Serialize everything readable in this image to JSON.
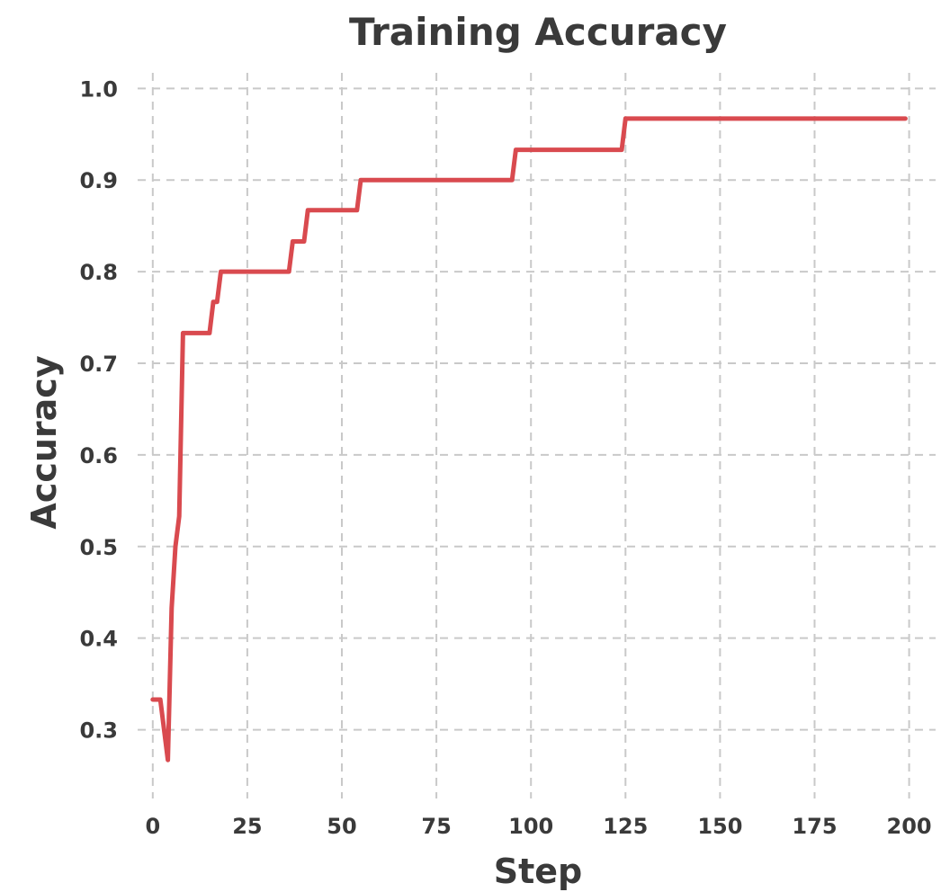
{
  "chart_data": {
    "type": "line",
    "title": "Training Accuracy",
    "xlabel": "Step",
    "ylabel": "Accuracy",
    "xlim": [
      -4,
      207
    ],
    "ylim": [
      0.225,
      1.017
    ],
    "xticks": [
      0,
      25,
      50,
      75,
      100,
      125,
      150,
      175,
      200
    ],
    "xtick_labels": [
      "0",
      "25",
      "50",
      "75",
      "100",
      "125",
      "150",
      "175",
      "200"
    ],
    "yticks": [
      0.3,
      0.4,
      0.5,
      0.6,
      0.7,
      0.8,
      0.9,
      1.0
    ],
    "ytick_labels": [
      "0.3",
      "0.4",
      "0.5",
      "0.6",
      "0.7",
      "0.8",
      "0.9",
      "1.0"
    ],
    "grid": true,
    "series": [
      {
        "color": "#d94a4f",
        "x": [
          0,
          1,
          2,
          3,
          4,
          5,
          6,
          7,
          8,
          9,
          15,
          16,
          17,
          18,
          36,
          37,
          38,
          40,
          41,
          54,
          55,
          95,
          96,
          124,
          125,
          199
        ],
        "y": [
          0.333,
          0.333,
          0.333,
          0.3,
          0.267,
          0.433,
          0.5,
          0.533,
          0.733,
          0.733,
          0.733,
          0.767,
          0.767,
          0.8,
          0.8,
          0.833,
          0.833,
          0.833,
          0.867,
          0.867,
          0.9,
          0.9,
          0.933,
          0.933,
          0.967,
          0.967
        ]
      }
    ]
  }
}
